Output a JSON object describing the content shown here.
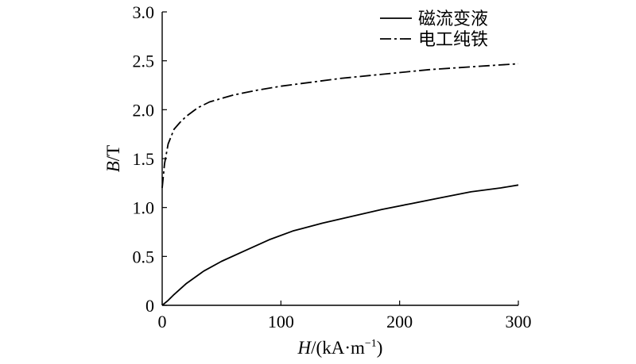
{
  "chart_data": {
    "type": "line",
    "xlabel": {
      "italic": "H",
      "rest": "/(kA·m",
      "sup": "−1",
      "close": ")"
    },
    "ylabel": {
      "italic": "B",
      "rest": "/T"
    },
    "xlim": [
      0,
      300
    ],
    "ylim": [
      0,
      3.0
    ],
    "xticks": [
      0,
      100,
      200,
      300
    ],
    "xtick_labels": [
      "0",
      "100",
      "200",
      "300"
    ],
    "yticks": [
      0,
      0.5,
      1.0,
      1.5,
      2.0,
      2.5,
      3.0
    ],
    "ytick_labels": [
      "0",
      "0.5",
      "1.0",
      "1.5",
      "2.0",
      "2.5",
      "3.0"
    ],
    "grid": false,
    "legend_position": "top-right",
    "series": [
      {
        "name": "磁流变液",
        "line_style": "solid",
        "color": "#000000",
        "x": [
          0,
          5,
          10,
          20,
          35,
          50,
          70,
          90,
          110,
          135,
          160,
          185,
          210,
          235,
          260,
          285,
          300
        ],
        "y": [
          0,
          0.05,
          0.11,
          0.22,
          0.35,
          0.45,
          0.56,
          0.67,
          0.76,
          0.84,
          0.91,
          0.98,
          1.04,
          1.1,
          1.16,
          1.2,
          1.23
        ]
      },
      {
        "name": "电工纯铁",
        "line_style": "dash-dot",
        "color": "#000000",
        "x": [
          0,
          2,
          5,
          10,
          15,
          20,
          30,
          40,
          60,
          80,
          100,
          125,
          150,
          175,
          200,
          225,
          250,
          275,
          300
        ],
        "y": [
          1.2,
          1.45,
          1.65,
          1.8,
          1.87,
          1.93,
          2.02,
          2.08,
          2.15,
          2.2,
          2.24,
          2.28,
          2.32,
          2.35,
          2.38,
          2.41,
          2.43,
          2.45,
          2.47
        ]
      }
    ]
  }
}
